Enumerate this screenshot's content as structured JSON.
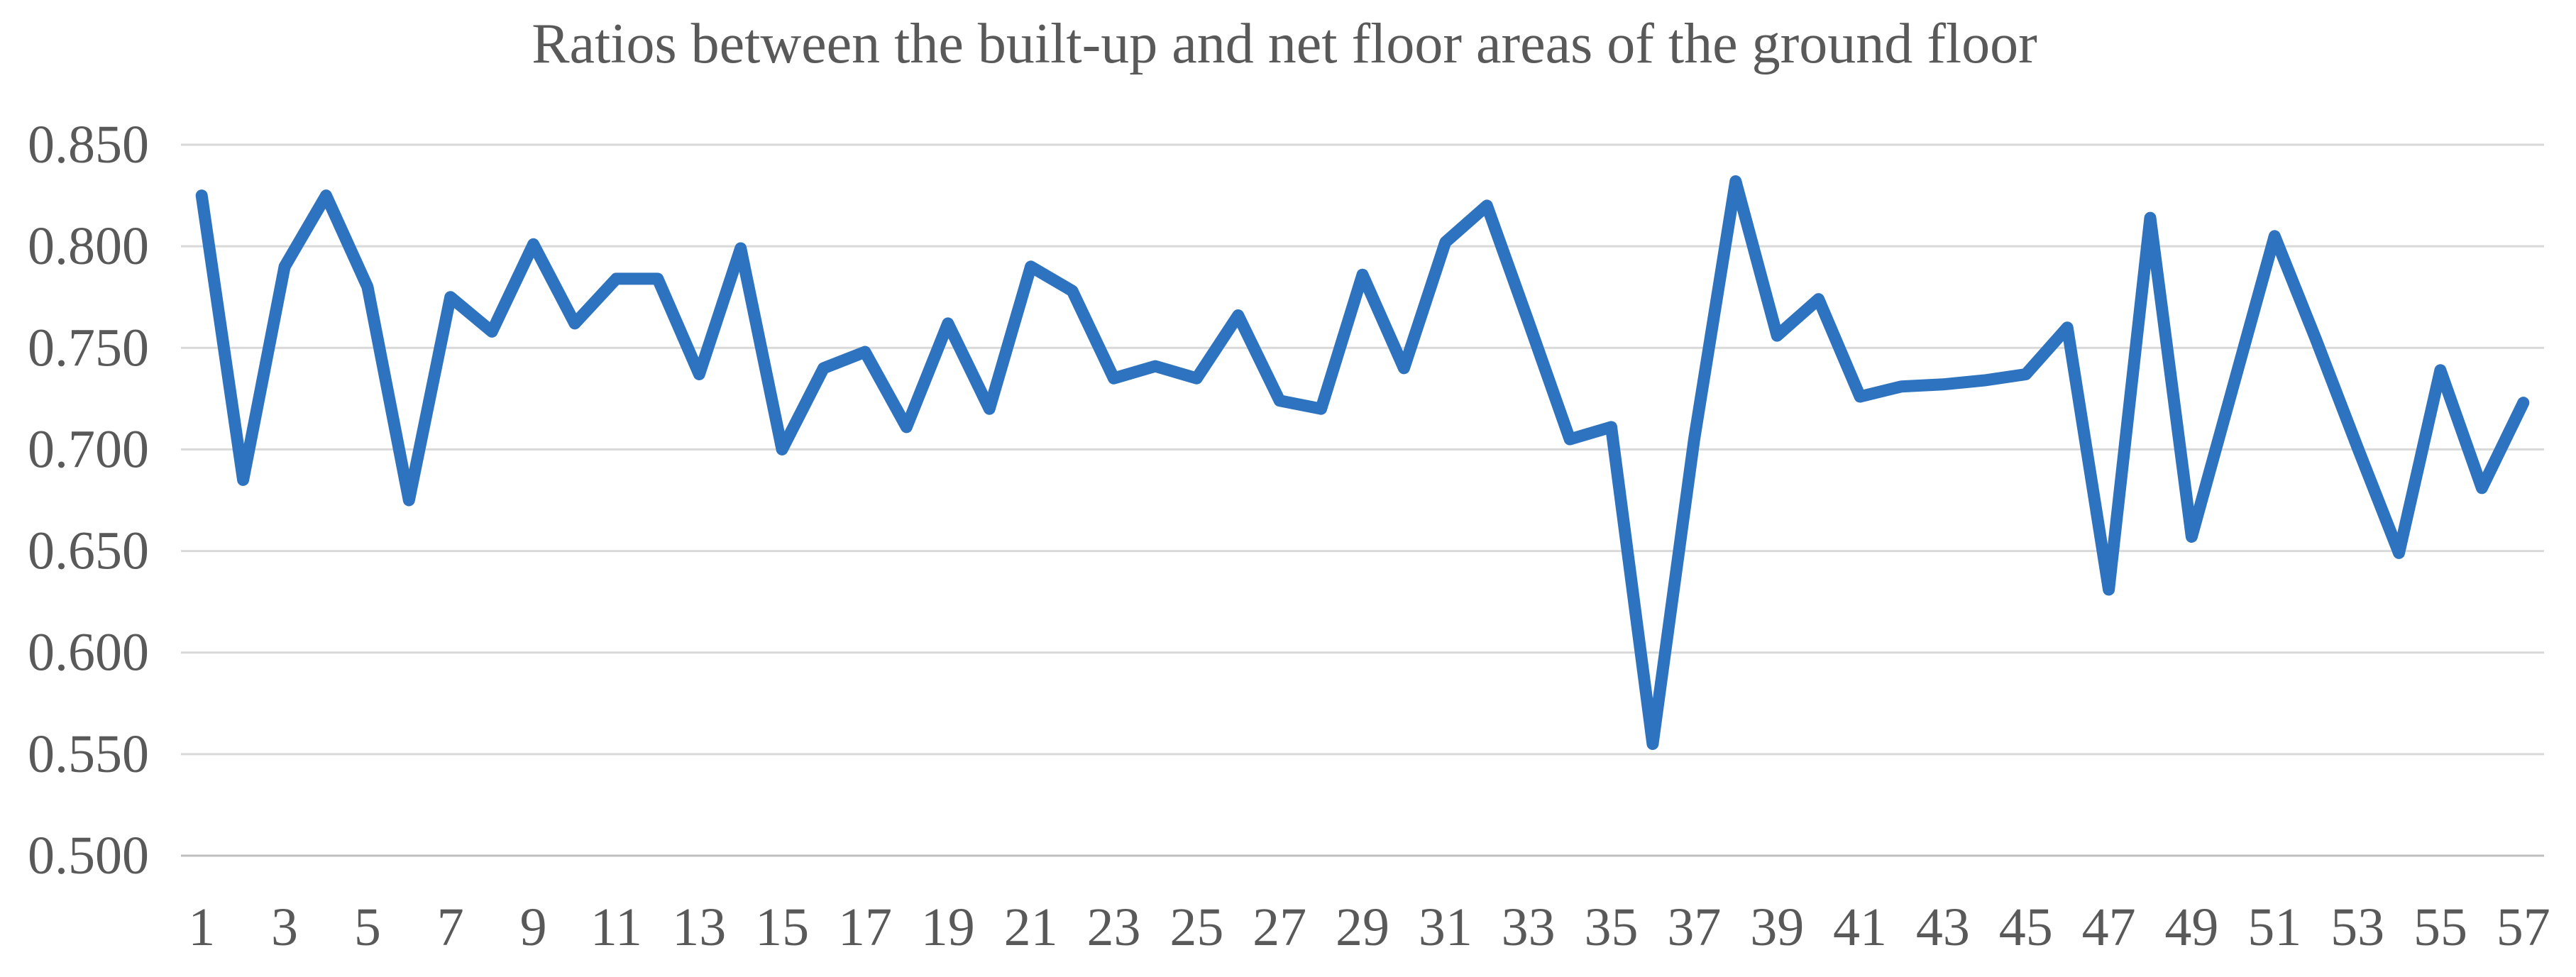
{
  "chart_data": {
    "type": "line",
    "title": "Ratios between the built-up and net floor areas of the ground floor",
    "xlabel": "",
    "ylabel": "",
    "x": [
      1,
      2,
      3,
      4,
      5,
      6,
      7,
      8,
      9,
      10,
      11,
      12,
      13,
      14,
      15,
      16,
      17,
      18,
      19,
      20,
      21,
      22,
      23,
      24,
      25,
      26,
      27,
      28,
      29,
      30,
      31,
      32,
      33,
      34,
      35,
      36,
      37,
      38,
      39,
      40,
      41,
      42,
      43,
      44,
      45,
      46,
      47,
      48,
      49,
      50,
      51,
      52,
      53,
      54,
      55,
      56,
      57
    ],
    "values": [
      0.825,
      0.685,
      0.79,
      0.825,
      0.78,
      0.675,
      0.775,
      0.758,
      0.801,
      0.762,
      0.784,
      0.784,
      0.737,
      0.799,
      0.7,
      0.74,
      0.748,
      0.711,
      0.762,
      0.72,
      0.79,
      0.778,
      0.735,
      0.741,
      0.735,
      0.766,
      0.724,
      0.72,
      0.786,
      0.74,
      0.802,
      0.82,
      0.763,
      0.705,
      0.711,
      0.555,
      0.705,
      0.832,
      0.756,
      0.774,
      0.726,
      0.731,
      0.732,
      0.734,
      0.737,
      0.76,
      0.631,
      0.814,
      0.657,
      0.731,
      0.805,
      0.754,
      0.701,
      0.649,
      0.739,
      0.681,
      0.723
    ],
    "ylim": [
      0.5,
      0.85
    ],
    "ytick_step": 0.05,
    "y_tick_labels": [
      "0.850",
      "0.800",
      "0.750",
      "0.700",
      "0.650",
      "0.600",
      "0.550",
      "0.500"
    ],
    "x_tick_labels": [
      1,
      3,
      5,
      7,
      9,
      11,
      13,
      15,
      17,
      19,
      21,
      23,
      25,
      27,
      29,
      31,
      33,
      35,
      37,
      39,
      41,
      43,
      45,
      47,
      49,
      51,
      53,
      55,
      57
    ],
    "grid": true,
    "legend": "none",
    "colors": {
      "series_line": "#2E73C0",
      "gridline": "#D9D9D9",
      "axis_line": "#BFBFBF",
      "text": "#595959",
      "background": "#FFFFFF"
    }
  }
}
